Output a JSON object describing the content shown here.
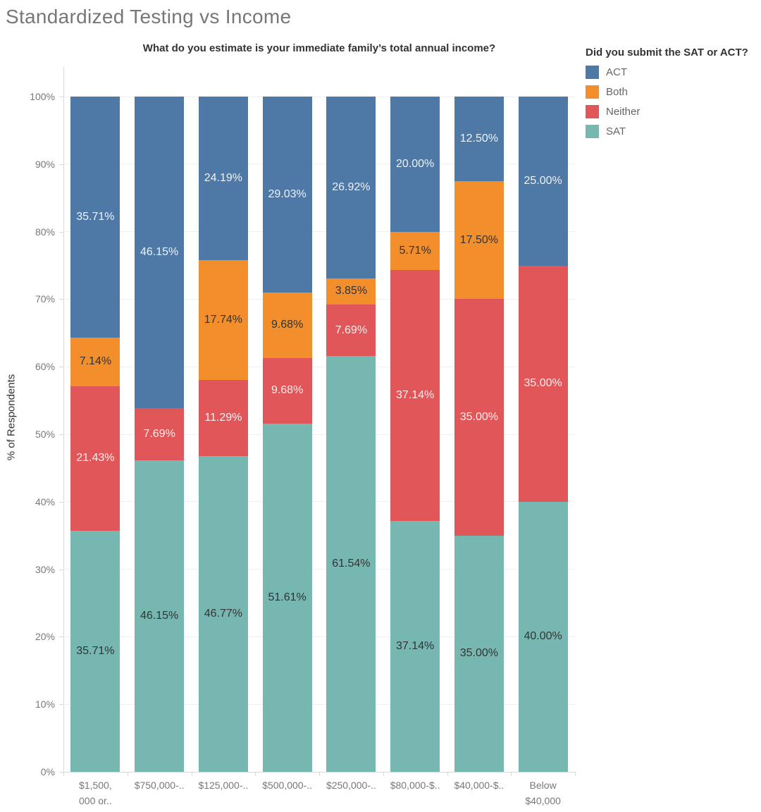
{
  "chart_data": {
    "type": "bar",
    "stacked": true,
    "units": "percent",
    "title": "Standardized Testing vs Income",
    "subtitle": "What do you estimate is your immediate family’s total annual income?",
    "ylabel": "% of Respondents",
    "ylim": [
      0,
      100
    ],
    "grid": "horizontal",
    "yticks": [
      {
        "v": 0,
        "label": "0%"
      },
      {
        "v": 10,
        "label": "10%"
      },
      {
        "v": 20,
        "label": "20%"
      },
      {
        "v": 30,
        "label": "30%"
      },
      {
        "v": 40,
        "label": "40%"
      },
      {
        "v": 50,
        "label": "50%"
      },
      {
        "v": 60,
        "label": "60%"
      },
      {
        "v": 70,
        "label": "70%"
      },
      {
        "v": 80,
        "label": "80%"
      },
      {
        "v": 90,
        "label": "90%"
      },
      {
        "v": 100,
        "label": "100%"
      }
    ],
    "categories": [
      "$1,500,\n000 or..",
      "$750,000-..",
      "$125,000-..",
      "$500,000-..",
      "$250,000-..",
      "$80,000-$..",
      "$40,000-$..",
      "Below\n$40,000"
    ],
    "legend": {
      "title": "Did you submit the SAT or ACT?",
      "position": "top-right",
      "items": [
        {
          "label": "ACT",
          "color": "#4e79a7"
        },
        {
          "label": "Both",
          "color": "#f28e2b"
        },
        {
          "label": "Neither",
          "color": "#e15759"
        },
        {
          "label": "SAT",
          "color": "#76b7b2"
        }
      ]
    },
    "series": [
      {
        "name": "SAT",
        "color": "#76b7b2",
        "label_color": "#333333",
        "values": [
          35.71,
          46.15,
          46.77,
          51.61,
          61.54,
          37.14,
          35.0,
          40.0
        ],
        "labels": [
          "35.71%",
          "46.15%",
          "46.77%",
          "51.61%",
          "61.54%",
          "37.14%",
          "35.00%",
          "40.00%"
        ]
      },
      {
        "name": "Neither",
        "color": "#e15759",
        "label_color": "rgba(255,255,255,0.9)",
        "values": [
          21.43,
          7.69,
          11.29,
          9.68,
          7.69,
          37.14,
          35.0,
          35.0
        ],
        "labels": [
          "21.43%",
          "7.69%",
          "11.29%",
          "9.68%",
          "7.69%",
          "37.14%",
          "35.00%",
          "35.00%"
        ]
      },
      {
        "name": "Both",
        "color": "#f28e2b",
        "label_color": "#333333",
        "values": [
          7.14,
          0,
          17.74,
          9.68,
          3.85,
          5.71,
          17.5,
          0
        ],
        "labels": [
          "7.14%",
          "",
          "17.74%",
          "9.68%",
          "3.85%",
          "5.71%",
          "17.50%",
          ""
        ]
      },
      {
        "name": "ACT",
        "color": "#4e79a7",
        "label_color": "rgba(255,255,255,0.9)",
        "values": [
          35.71,
          46.15,
          24.19,
          29.03,
          26.92,
          20.0,
          12.5,
          25.0
        ],
        "labels": [
          "35.71%",
          "46.15%",
          "24.19%",
          "29.03%",
          "26.92%",
          "20.00%",
          "12.50%",
          "25.00%"
        ]
      }
    ]
  }
}
